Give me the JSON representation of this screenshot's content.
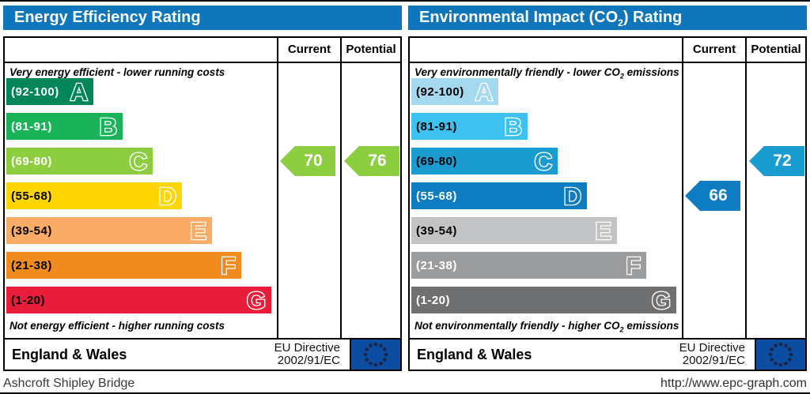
{
  "panels": [
    {
      "title": {
        "pre": "Energy Efficiency Rating",
        "sub": "",
        "post": ""
      },
      "columns": {
        "current": "Current",
        "potential": "Potential"
      },
      "caption_top": {
        "pre": "Very energy efficient - lower running costs",
        "sub": "",
        "post": ""
      },
      "caption_bottom": {
        "pre": "Not energy efficient - higher running costs",
        "sub": "",
        "post": ""
      },
      "bands": [
        {
          "range": "(92-100)",
          "letter": "A",
          "color": "#008657",
          "text_color": "#ffffff"
        },
        {
          "range": "(81-91)",
          "letter": "B",
          "color": "#1bb35a",
          "text_color": "#ffffff"
        },
        {
          "range": "(69-80)",
          "letter": "C",
          "color": "#8cce3f",
          "text_color": "#ffffff"
        },
        {
          "range": "(55-68)",
          "letter": "D",
          "color": "#ffd600",
          "text_color": "#000000"
        },
        {
          "range": "(39-54)",
          "letter": "E",
          "color": "#faab65",
          "text_color": "#000000"
        },
        {
          "range": "(21-38)",
          "letter": "F",
          "color": "#f08b1f",
          "text_color": "#000000"
        },
        {
          "range": "(1-20)",
          "letter": "G",
          "color": "#e91c3a",
          "text_color": "#000000"
        }
      ],
      "current": {
        "value": "70",
        "row": 2,
        "color": "#8cce3f"
      },
      "potential": {
        "value": "76",
        "row": 2,
        "color": "#8cce3f"
      },
      "footer": {
        "region": "England & Wales",
        "directive_line1": "EU Directive",
        "directive_line2": "2002/91/EC"
      }
    },
    {
      "title": {
        "pre": "Environmental Impact (CO",
        "sub": "2",
        "post": ") Rating"
      },
      "columns": {
        "current": "Current",
        "potential": "Potential"
      },
      "caption_top": {
        "pre": "Very environmentally friendly - lower CO",
        "sub": "2",
        "post": " emissions"
      },
      "caption_bottom": {
        "pre": "Not environmentally friendly - higher CO",
        "sub": "2",
        "post": " emissions"
      },
      "bands": [
        {
          "range": "(92-100)",
          "letter": "A",
          "color": "#a5d9f0",
          "text_color": "#000000"
        },
        {
          "range": "(81-91)",
          "letter": "B",
          "color": "#3cc1f0",
          "text_color": "#000000"
        },
        {
          "range": "(69-80)",
          "letter": "C",
          "color": "#1b9cd1",
          "text_color": "#000000"
        },
        {
          "range": "(55-68)",
          "letter": "D",
          "color": "#0e7cc0",
          "text_color": "#ffffff"
        },
        {
          "range": "(39-54)",
          "letter": "E",
          "color": "#c2c3c4",
          "text_color": "#000000"
        },
        {
          "range": "(21-38)",
          "letter": "F",
          "color": "#9b9c9e",
          "text_color": "#ffffff"
        },
        {
          "range": "(1-20)",
          "letter": "G",
          "color": "#6e7072",
          "text_color": "#ffffff"
        }
      ],
      "current": {
        "value": "66",
        "row": 3,
        "color": "#0e7cc0"
      },
      "potential": {
        "value": "72",
        "row": 2,
        "color": "#1b9cd1"
      },
      "footer": {
        "region": "England & Wales",
        "directive_line1": "EU Directive",
        "directive_line2": "2002/91/EC"
      }
    }
  ],
  "bottom": {
    "left_text": "Ashcroft Shipley Bridge",
    "right_text": "http://www.epc-graph.com"
  },
  "colors": {
    "title_bar": "#0f76bc",
    "eu_flag_blue": "#0c4da2",
    "eu_flag_star": "#1a1f3c"
  },
  "chart_data": [
    {
      "type": "bar",
      "title": "Energy Efficiency Rating",
      "subtitle_top": "Very energy efficient - lower running costs",
      "subtitle_bottom": "Not energy efficient - higher running costs",
      "categories": [
        "A (92-100)",
        "B (81-91)",
        "C (69-80)",
        "D (55-68)",
        "E (39-54)",
        "F (21-38)",
        "G (1-20)"
      ],
      "band_colors": [
        "#008657",
        "#1bb35a",
        "#8cce3f",
        "#ffd600",
        "#faab65",
        "#f08b1f",
        "#e91c3a"
      ],
      "current": 70,
      "current_band": "C",
      "potential": 76,
      "potential_band": "C",
      "value_range": [
        1,
        100
      ],
      "footer": "England & Wales — EU Directive 2002/91/EC"
    },
    {
      "type": "bar",
      "title": "Environmental Impact (CO2) Rating",
      "subtitle_top": "Very environmentally friendly - lower CO2 emissions",
      "subtitle_bottom": "Not environmentally friendly - higher CO2 emissions",
      "categories": [
        "A (92-100)",
        "B (81-91)",
        "C (69-80)",
        "D (55-68)",
        "E (39-54)",
        "F (21-38)",
        "G (1-20)"
      ],
      "band_colors": [
        "#a5d9f0",
        "#3cc1f0",
        "#1b9cd1",
        "#0e7cc0",
        "#c2c3c4",
        "#9b9c9e",
        "#6e7072"
      ],
      "current": 66,
      "current_band": "D",
      "potential": 72,
      "potential_band": "C",
      "value_range": [
        1,
        100
      ],
      "footer": "England & Wales — EU Directive 2002/91/EC"
    }
  ]
}
